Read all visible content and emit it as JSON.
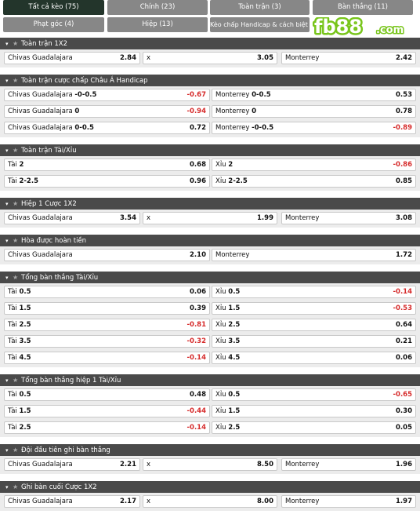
{
  "tabs": [
    {
      "label": "Tất cả kèo (75)",
      "active": true
    },
    {
      "label": "Chính (23)"
    },
    {
      "label": "Toàn trận (3)"
    },
    {
      "label": "Bàn thắng (11)"
    },
    {
      "label": "Phạt góc (4)"
    },
    {
      "label": "Hiệp (13)"
    },
    {
      "label": "Kèo chấp Handicap & cách biệt (3)"
    }
  ],
  "logo": {
    "text": "fb88",
    "suffix": ".com",
    "brand_green": "#78c51b"
  },
  "colors": {
    "header_bg": "#4a4a4a",
    "active_tab": "#23352b",
    "tab_bg": "#878787",
    "negative": "#d62b2b"
  },
  "sections": [
    {
      "title": "Toàn trận 1X2",
      "layout": "3col",
      "rows": [
        [
          {
            "label": "Chivas Guadalajara",
            "odd": "2.84"
          },
          {
            "label": "x",
            "odd": "3.05"
          },
          {
            "label": "Monterrey",
            "odd": "2.42"
          }
        ]
      ]
    },
    {
      "title": "Toàn trận cược chấp Châu Á Handicap",
      "layout": "2col",
      "rows": [
        [
          {
            "label": "Chivas Guadalajara",
            "line": "-0-0.5",
            "odd": "-0.67"
          },
          {
            "label": "Monterrey",
            "line": "0-0.5",
            "odd": "0.53"
          }
        ],
        [
          {
            "label": "Chivas Guadalajara",
            "line": "0",
            "odd": "-0.94"
          },
          {
            "label": "Monterrey",
            "line": "0",
            "odd": "0.78"
          }
        ],
        [
          {
            "label": "Chivas Guadalajara",
            "line": "0-0.5",
            "odd": "0.72"
          },
          {
            "label": "Monterrey",
            "line": "-0-0.5",
            "odd": "-0.89"
          }
        ]
      ]
    },
    {
      "title": "Toàn trận Tài/Xỉu",
      "layout": "2col",
      "rows": [
        [
          {
            "label": "Tài",
            "line": "2",
            "odd": "0.68"
          },
          {
            "label": "Xỉu",
            "line": "2",
            "odd": "-0.86"
          }
        ],
        [
          {
            "label": "Tài",
            "line": "2-2.5",
            "odd": "0.96"
          },
          {
            "label": "Xỉu",
            "line": "2-2.5",
            "odd": "0.85"
          }
        ]
      ]
    },
    {
      "title": "Hiệp 1 Cược 1X2",
      "layout": "3col",
      "rows": [
        [
          {
            "label": "Chivas Guadalajara",
            "odd": "3.54"
          },
          {
            "label": "x",
            "odd": "1.99"
          },
          {
            "label": "Monterrey",
            "odd": "3.08"
          }
        ]
      ]
    },
    {
      "title": "Hòa được hoàn tiền",
      "layout": "2col",
      "rows": [
        [
          {
            "label": "Chivas Guadalajara",
            "odd": "2.10"
          },
          {
            "label": "Monterrey",
            "odd": "1.72"
          }
        ]
      ]
    },
    {
      "title": "Tổng bàn thắng Tài/Xỉu",
      "layout": "2col",
      "rows": [
        [
          {
            "label": "Tài",
            "line": "0.5",
            "odd": "0.06"
          },
          {
            "label": "Xỉu",
            "line": "0.5",
            "odd": "-0.14"
          }
        ],
        [
          {
            "label": "Tài",
            "line": "1.5",
            "odd": "0.39"
          },
          {
            "label": "Xỉu",
            "line": "1.5",
            "odd": "-0.53"
          }
        ],
        [
          {
            "label": "Tài",
            "line": "2.5",
            "odd": "-0.81"
          },
          {
            "label": "Xỉu",
            "line": "2.5",
            "odd": "0.64"
          }
        ],
        [
          {
            "label": "Tài",
            "line": "3.5",
            "odd": "-0.32"
          },
          {
            "label": "Xỉu",
            "line": "3.5",
            "odd": "0.21"
          }
        ],
        [
          {
            "label": "Tài",
            "line": "4.5",
            "odd": "-0.14"
          },
          {
            "label": "Xỉu",
            "line": "4.5",
            "odd": "0.06"
          }
        ]
      ]
    },
    {
      "title": "Tổng bàn thắng hiệp 1 Tài/Xỉu",
      "layout": "2col",
      "rows": [
        [
          {
            "label": "Tài",
            "line": "0.5",
            "odd": "0.48"
          },
          {
            "label": "Xỉu",
            "line": "0.5",
            "odd": "-0.65"
          }
        ],
        [
          {
            "label": "Tài",
            "line": "1.5",
            "odd": "-0.44"
          },
          {
            "label": "Xỉu",
            "line": "1.5",
            "odd": "0.30"
          }
        ],
        [
          {
            "label": "Tài",
            "line": "2.5",
            "odd": "-0.14"
          },
          {
            "label": "Xỉu",
            "line": "2.5",
            "odd": "0.05"
          }
        ]
      ]
    },
    {
      "title": "Đội đầu tiên ghi bàn thắng",
      "layout": "3col",
      "rows": [
        [
          {
            "label": "Chivas Guadalajara",
            "odd": "2.21"
          },
          {
            "label": "x",
            "odd": "8.50"
          },
          {
            "label": "Monterrey",
            "odd": "1.96"
          }
        ]
      ]
    },
    {
      "title": "Ghi bàn cuối Cược 1X2",
      "layout": "3col",
      "rows": [
        [
          {
            "label": "Chivas Guadalajara",
            "odd": "2.17"
          },
          {
            "label": "x",
            "odd": "8.00"
          },
          {
            "label": "Monterrey",
            "odd": "1.97"
          }
        ]
      ]
    }
  ]
}
